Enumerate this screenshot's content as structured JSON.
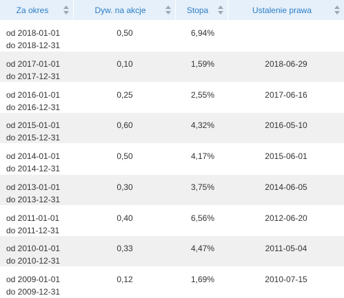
{
  "table": {
    "headers": [
      {
        "label": "Za okres"
      },
      {
        "label": "Dyw. na akcje"
      },
      {
        "label": "Stopa"
      },
      {
        "label": "Ustalenie prawa"
      }
    ],
    "rows": [
      {
        "from": "od 2018-01-01",
        "to": "do 2018-12-31",
        "dividend": "0,50",
        "rate": "6,94%",
        "record_date": ""
      },
      {
        "from": "od 2017-01-01",
        "to": "do 2017-12-31",
        "dividend": "0,10",
        "rate": "1,59%",
        "record_date": "2018-06-29"
      },
      {
        "from": "od 2016-01-01",
        "to": "do 2016-12-31",
        "dividend": "0,25",
        "rate": "2,55%",
        "record_date": "2017-06-16"
      },
      {
        "from": "od 2015-01-01",
        "to": "do 2015-12-31",
        "dividend": "0,60",
        "rate": "4,32%",
        "record_date": "2016-05-10"
      },
      {
        "from": "od 2014-01-01",
        "to": "do 2014-12-31",
        "dividend": "0,50",
        "rate": "4,17%",
        "record_date": "2015-06-01"
      },
      {
        "from": "od 2013-01-01",
        "to": "do 2013-12-31",
        "dividend": "0,30",
        "rate": "3,75%",
        "record_date": "2014-06-05"
      },
      {
        "from": "od 2011-01-01",
        "to": "do 2011-12-31",
        "dividend": "0,40",
        "rate": "6,56%",
        "record_date": "2012-06-20"
      },
      {
        "from": "od 2010-01-01",
        "to": "do 2010-12-31",
        "dividend": "0,33",
        "rate": "4,47%",
        "record_date": "2011-05-04"
      },
      {
        "from": "od 2009-01-01",
        "to": "do 2009-12-31",
        "dividend": "0,12",
        "rate": "1,69%",
        "record_date": "2010-07-15"
      }
    ]
  },
  "colors": {
    "header_bg": "#e6f0fa",
    "header_text": "#2a7dc6",
    "alt_row_bg": "#f0f0f0",
    "text": "#333333"
  }
}
